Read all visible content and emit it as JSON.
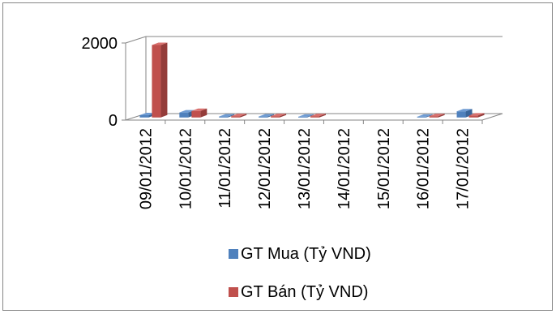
{
  "chart_data": {
    "type": "bar",
    "style": "3d-clustered-column",
    "categories": [
      "09/01/2012",
      "10/01/2012",
      "11/01/2012",
      "12/01/2012",
      "13/01/2012",
      "14/01/2012",
      "15/01/2012",
      "16/01/2012",
      "17/01/2012"
    ],
    "series": [
      {
        "name": "GT Mua (Tỷ VND)",
        "color": "#4F81BD",
        "top_color": "#6E9BD3",
        "side_color": "#3A6599",
        "values": [
          60,
          130,
          25,
          25,
          20,
          0,
          0,
          20,
          160
        ]
      },
      {
        "name": "GT Bán (Tỷ VND)",
        "color": "#C0504D",
        "top_color": "#D9716E",
        "side_color": "#943C3A",
        "values": [
          1880,
          170,
          35,
          35,
          35,
          0,
          0,
          35,
          50
        ]
      }
    ],
    "y_ticks": [
      "2000",
      "0"
    ],
    "ylim": [
      0,
      2000
    ],
    "grid": true,
    "legend_position": "bottom"
  }
}
